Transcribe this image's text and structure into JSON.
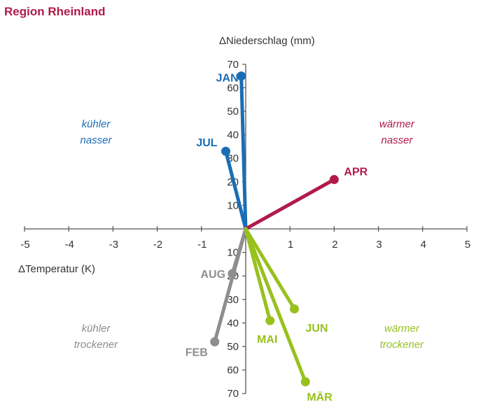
{
  "title": "Region Rheinland",
  "chart_data": {
    "type": "scatter",
    "title": "Region Rheinland",
    "xlabel": "ΔTemperatur (K)",
    "ylabel": "ΔNiederschlag (mm)",
    "xlim": [
      -5,
      5
    ],
    "ylim": [
      -70,
      70
    ],
    "xticks": [
      "-5",
      "-4",
      "-3",
      "-2",
      "-1",
      "0",
      "1",
      "2",
      "3",
      "4",
      "5"
    ],
    "yticks_upper": [
      "10",
      "20",
      "30",
      "40",
      "50",
      "60",
      "70"
    ],
    "yticks_lower": [
      "10",
      "20",
      "30",
      "40",
      "50",
      "60",
      "70"
    ],
    "quadrants": {
      "top_left": [
        "kühler",
        "nasser"
      ],
      "top_right": [
        "wärmer",
        "nasser"
      ],
      "bottom_left": [
        "kühler",
        "trockener"
      ],
      "bottom_right": [
        "wärmer",
        "trockener"
      ]
    },
    "colors": {
      "kuehler_nasser": "#1a6db5",
      "waermer_nasser": "#b01a49",
      "kuehler_trockener": "#8e8e8e",
      "waermer_trockener": "#98c11e",
      "axis": "#555555"
    },
    "points": [
      {
        "label": "JAN",
        "x": -0.1,
        "y": 65,
        "group": "kuehler_nasser"
      },
      {
        "label": "JUL",
        "x": -0.45,
        "y": 33,
        "group": "kuehler_nasser"
      },
      {
        "label": "APR",
        "x": 2.0,
        "y": 21,
        "group": "waermer_nasser"
      },
      {
        "label": "AUG",
        "x": -0.3,
        "y": -19,
        "group": "kuehler_trockener"
      },
      {
        "label": "FEB",
        "x": -0.7,
        "y": -48,
        "group": "kuehler_trockener"
      },
      {
        "label": "JUN",
        "x": 1.1,
        "y": -34,
        "group": "waermer_trockener"
      },
      {
        "label": "MAI",
        "x": 0.55,
        "y": -39,
        "group": "waermer_trockener"
      },
      {
        "label": "MÄR",
        "x": 1.35,
        "y": -65,
        "group": "waermer_trockener"
      }
    ]
  }
}
